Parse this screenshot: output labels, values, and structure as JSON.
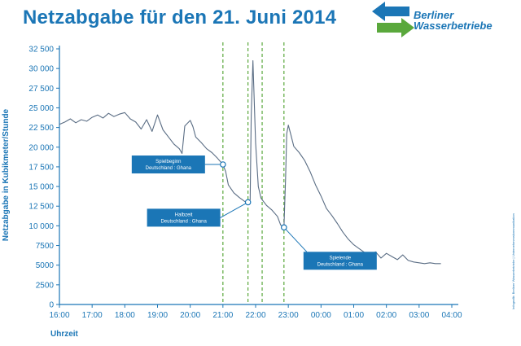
{
  "title": "Netzabgabe für den 21. Juni 2014",
  "logo": {
    "line1": "Berliner",
    "line2": "Wasserbetriebe"
  },
  "credit": "Infografik: Berliner Wasserbetriebe | Unternehmenskommunikation",
  "colors": {
    "line": "#5a6d84",
    "axis": "#1b76b6",
    "event": "#5aa83c",
    "callout": "#1b76b6"
  },
  "chart_data": {
    "type": "line",
    "title": "Netzabgabe für den 21. Juni 2014",
    "xlabel": "Uhrzeit",
    "ylabel": "Netzabgabe in Kubikmeter/Stunde",
    "xlim": [
      "16:00",
      "04:00"
    ],
    "ylim": [
      0,
      32500
    ],
    "x_ticks": [
      "16:00",
      "17:00",
      "18:00",
      "19:00",
      "20:00",
      "21:00",
      "22:00",
      "23:00",
      "00:00",
      "01:00",
      "02:00",
      "03:00",
      "04:00"
    ],
    "y_ticks": [
      0,
      2500,
      5000,
      7500,
      10000,
      12500,
      15000,
      17500,
      20000,
      22500,
      25000,
      27500,
      30000,
      32500
    ],
    "y_tick_labels": [
      "0",
      "2500",
      "5000",
      "7500",
      "10 000",
      "12 500",
      "15 000",
      "17 500",
      "20 000",
      "22 500",
      "25 000",
      "27 500",
      "30 000",
      "32 500"
    ],
    "grid": false,
    "legend": "none",
    "series": [
      {
        "x": [
          "16:00",
          "16:10",
          "16:20",
          "16:30",
          "16:40",
          "16:50",
          "17:00",
          "17:10",
          "17:20",
          "17:30",
          "17:40",
          "17:50",
          "18:00",
          "18:10",
          "18:20",
          "18:30",
          "18:40",
          "18:50",
          "19:00",
          "19:10",
          "19:20",
          "19:30",
          "19:40",
          "19:45",
          "19:50",
          "20:00",
          "20:05",
          "20:10",
          "20:20",
          "20:30",
          "20:40",
          "20:50",
          "21:00",
          "21:05",
          "21:10",
          "21:20",
          "21:30",
          "21:40",
          "21:46",
          "21:50",
          "21:52",
          "21:55",
          "22:00",
          "22:05",
          "22:10",
          "22:20",
          "22:30",
          "22:40",
          "22:46",
          "22:52",
          "22:55",
          "22:57",
          "23:00",
          "23:05",
          "23:10",
          "23:20",
          "23:30",
          "23:40",
          "23:50",
          "00:00",
          "00:10",
          "00:20",
          "00:30",
          "00:40",
          "00:50",
          "01:00",
          "01:10",
          "01:20",
          "01:30",
          "01:40",
          "01:50",
          "02:00",
          "02:10",
          "02:20",
          "02:30",
          "02:40",
          "02:50",
          "03:00",
          "03:10",
          "03:20",
          "03:30",
          "03:40"
        ],
        "values": [
          22900,
          23200,
          23600,
          23100,
          23500,
          23300,
          23800,
          24100,
          23700,
          24300,
          23900,
          24200,
          24400,
          23600,
          23200,
          22300,
          23500,
          22000,
          24100,
          22200,
          21300,
          20400,
          19800,
          19200,
          22700,
          23400,
          22600,
          21300,
          20600,
          19800,
          19300,
          18600,
          17800,
          16900,
          15200,
          14200,
          13600,
          13100,
          13000,
          13300,
          24000,
          31000,
          20500,
          15000,
          13500,
          12600,
          12000,
          11200,
          10100,
          9800,
          16000,
          21700,
          22800,
          21500,
          20100,
          19300,
          18300,
          16900,
          15200,
          13800,
          12200,
          11300,
          10300,
          9200,
          8300,
          7600,
          7100,
          6600,
          6100,
          6700,
          5900,
          6500,
          6100,
          5700,
          6300,
          5600,
          5400,
          5300,
          5200,
          5300,
          5200,
          5200
        ]
      }
    ],
    "events": [
      {
        "x": "21:00",
        "y": 17800,
        "label1": "Spielbeginn",
        "label2": "Deutschland : Ghana"
      },
      {
        "x": "21:46",
        "y": 13000,
        "label1": "Halbzeit",
        "label2": "Deutschland : Ghana"
      },
      {
        "x": "22:52",
        "y": 9800,
        "label1": "Spielende",
        "label2": "Deutschland : Ghana"
      }
    ],
    "vlines": [
      "21:00",
      "21:46",
      "22:12",
      "22:52"
    ]
  }
}
